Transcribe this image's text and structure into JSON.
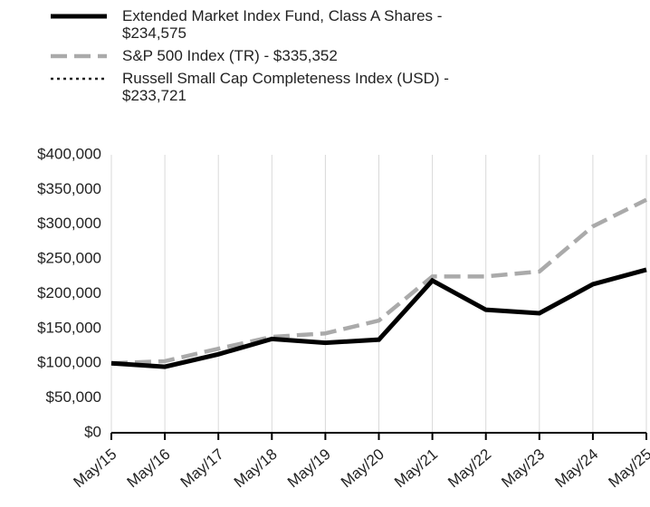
{
  "chart_data": {
    "type": "line",
    "categories": [
      "May/15",
      "May/16",
      "May/17",
      "May/18",
      "May/19",
      "May/20",
      "May/21",
      "May/22",
      "May/23",
      "May/24",
      "May/25"
    ],
    "series": [
      {
        "name": "Russell Small Cap Completeness Index (USD) - $233,721",
        "color": "#222222",
        "style": "dotted",
        "values": [
          100000,
          95500,
          113500,
          135000,
          129500,
          134500,
          218000,
          177500,
          172500,
          213000,
          233721
        ]
      },
      {
        "name": "S&P 500 Index (TR) - $335,352",
        "color": "#aaaaaa",
        "style": "dashed",
        "values": [
          100000,
          103000,
          121000,
          138000,
          143000,
          161500,
          225000,
          225000,
          232000,
          297000,
          335352
        ]
      },
      {
        "name": "Extended Market Index Fund, Class A Shares - $234,575",
        "color": "#000000",
        "style": "solid",
        "values": [
          100000,
          95000,
          113000,
          135000,
          129500,
          134000,
          219000,
          177000,
          172000,
          213700,
          234575
        ]
      }
    ],
    "legend_order": [
      2,
      1,
      0
    ],
    "ylim": [
      0,
      400000
    ],
    "yticks": [
      {
        "value": 0,
        "label": "$0"
      },
      {
        "value": 50000,
        "label": "$50,000"
      },
      {
        "value": 100000,
        "label": "$100,000"
      },
      {
        "value": 150000,
        "label": "$150,000"
      },
      {
        "value": 200000,
        "label": "$200,000"
      },
      {
        "value": 250000,
        "label": "$250,000"
      },
      {
        "value": 300000,
        "label": "$300,000"
      },
      {
        "value": 350000,
        "label": "$350,000"
      },
      {
        "value": 400000,
        "label": "$400,000"
      }
    ],
    "grid": "x"
  }
}
